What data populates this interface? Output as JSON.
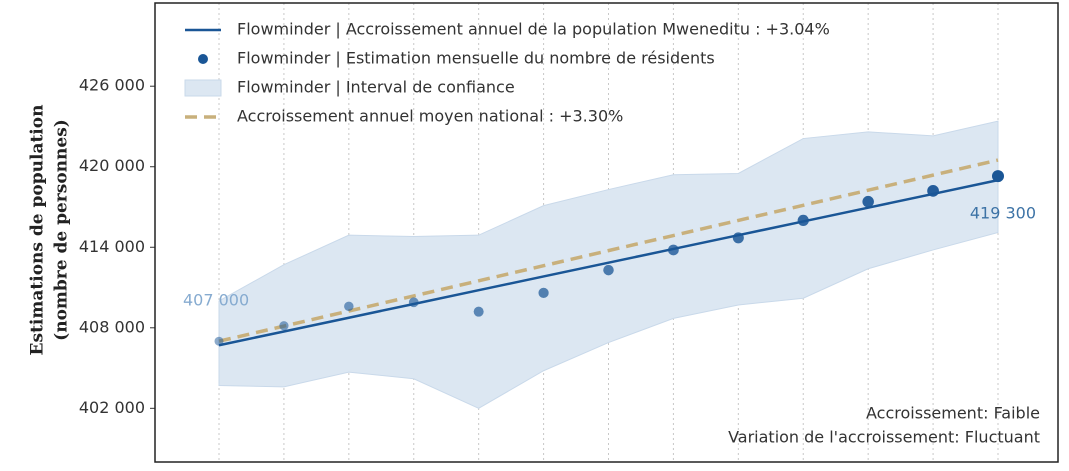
{
  "chart_data": {
    "type": "line",
    "y_label": [
      "Estimations de population",
      "(nombre de personnes)"
    ],
    "categories": [
      null,
      null,
      null,
      null,
      null,
      null,
      null,
      null,
      null,
      null,
      null,
      null,
      null
    ],
    "ylim": [
      398000,
      432200
    ],
    "yticks": [
      {
        "value": 402000,
        "label": "402 000"
      },
      {
        "value": 408000,
        "label": "408 000"
      },
      {
        "value": 414000,
        "label": "414 000"
      },
      {
        "value": 420000,
        "label": "420 000"
      },
      {
        "value": 426000,
        "label": "426 000"
      }
    ],
    "x_grid": true,
    "legend": "upper left",
    "series": [
      {
        "name": "Flowminder | Accroissement annuel de la population Mweneditu : +3.04%",
        "type": "line",
        "color": "#1a5696",
        "values": [
          406700,
          407725,
          408750,
          409775,
          410800,
          411825,
          412850,
          413875,
          414900,
          415925,
          416950,
          417975,
          419000
        ]
      },
      {
        "name": "Flowminder | Estimation mensuelle du nombre de résidents",
        "type": "scatter",
        "color": "#1a5696",
        "values": [
          407000,
          408150,
          409600,
          409900,
          409200,
          410600,
          412300,
          413800,
          414700,
          416000,
          417400,
          418200,
          419300
        ]
      },
      {
        "name": "Flowminder | Interval de confiance",
        "type": "band",
        "color": "#dce7f2",
        "upper": [
          410000,
          412700,
          414900,
          414800,
          414900,
          417100,
          418300,
          419400,
          419500,
          422100,
          422600,
          422300,
          423400
        ],
        "lower": [
          403700,
          403600,
          404700,
          404200,
          402000,
          404800,
          406900,
          408700,
          409700,
          410200,
          412400,
          413800,
          415100
        ]
      },
      {
        "name": "Accroissement annuel moyen national : +3.30%",
        "type": "line",
        "dash": true,
        "color": "#c8b07c",
        "values": [
          407000,
          408125,
          409250,
          410375,
          411500,
          412625,
          413750,
          414875,
          416000,
          417125,
          418250,
          419375,
          420500
        ]
      }
    ],
    "annotations": [
      {
        "text": "407 000",
        "color": "#86abd0"
      },
      {
        "text": "419 300",
        "color": "#3d73a6"
      }
    ],
    "notes": [
      "Accroissement: Faible",
      "Variation de l'accroissement: Fluctuant"
    ]
  }
}
